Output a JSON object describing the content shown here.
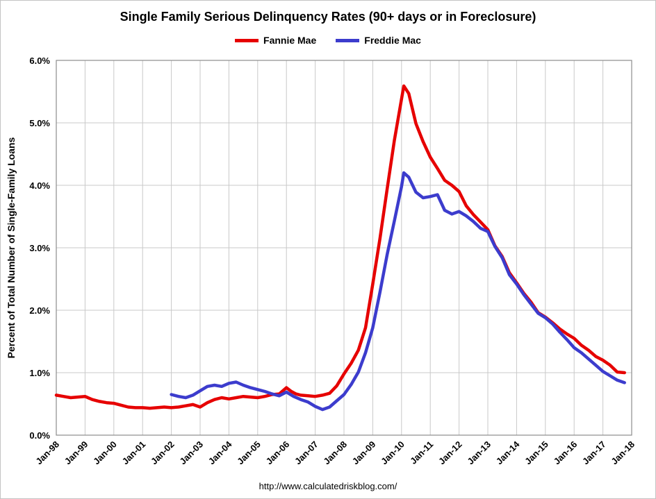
{
  "title": "Single Family Serious Delinquency Rates (90+ days or in Foreclosure)",
  "footer": {
    "text": "http://www.calculatedriskblog.com/"
  },
  "legend": [
    {
      "label": "Fannie Mae",
      "color": "#e60000"
    },
    {
      "label": "Freddie Mac",
      "color": "#3c3ccd"
    }
  ],
  "chart_data": {
    "type": "line",
    "title": "Single Family Serious Delinquency Rates (90+ days or in Foreclosure)",
    "xlabel": "",
    "ylabel": "Percent of Total Number of Single-Family Loans",
    "xlim": [
      1998,
      2018
    ],
    "ylim": [
      0,
      6
    ],
    "grid": true,
    "grid_color": "#c9c9c9",
    "axis_color": "#8c8c8c",
    "legend_position": "top",
    "y_ticks": [
      {
        "v": 0,
        "label": "0.0%"
      },
      {
        "v": 1,
        "label": "1.0%"
      },
      {
        "v": 2,
        "label": "2.0%"
      },
      {
        "v": 3,
        "label": "3.0%"
      },
      {
        "v": 4,
        "label": "4.0%"
      },
      {
        "v": 5,
        "label": "5.0%"
      },
      {
        "v": 6,
        "label": "6.0%"
      }
    ],
    "x_ticks": [
      {
        "x": 1998,
        "label": "Jan-98"
      },
      {
        "x": 1999,
        "label": "Jan-99"
      },
      {
        "x": 2000,
        "label": "Jan-00"
      },
      {
        "x": 2001,
        "label": "Jan-01"
      },
      {
        "x": 2002,
        "label": "Jan-02"
      },
      {
        "x": 2003,
        "label": "Jan-03"
      },
      {
        "x": 2004,
        "label": "Jan-04"
      },
      {
        "x": 2005,
        "label": "Jan-05"
      },
      {
        "x": 2006,
        "label": "Jan-06"
      },
      {
        "x": 2007,
        "label": "Jan-07"
      },
      {
        "x": 2008,
        "label": "Jan-08"
      },
      {
        "x": 2009,
        "label": "Jan-09"
      },
      {
        "x": 2010,
        "label": "Jan-10"
      },
      {
        "x": 2011,
        "label": "Jan-11"
      },
      {
        "x": 2012,
        "label": "Jan-12"
      },
      {
        "x": 2013,
        "label": "Jan-13"
      },
      {
        "x": 2014,
        "label": "Jan-14"
      },
      {
        "x": 2015,
        "label": "Jan-15"
      },
      {
        "x": 2016,
        "label": "Jan-16"
      },
      {
        "x": 2017,
        "label": "Jan-17"
      },
      {
        "x": 2018,
        "label": "Jan-18"
      }
    ],
    "series": [
      {
        "name": "Fannie Mae",
        "color": "#e60000",
        "points": [
          [
            1998.0,
            0.64
          ],
          [
            1998.25,
            0.62
          ],
          [
            1998.5,
            0.6
          ],
          [
            1998.75,
            0.61
          ],
          [
            1999.0,
            0.62
          ],
          [
            1999.25,
            0.57
          ],
          [
            1999.5,
            0.54
          ],
          [
            1999.75,
            0.52
          ],
          [
            2000.0,
            0.51
          ],
          [
            2000.25,
            0.48
          ],
          [
            2000.5,
            0.45
          ],
          [
            2000.75,
            0.44
          ],
          [
            2001.0,
            0.44
          ],
          [
            2001.25,
            0.43
          ],
          [
            2001.5,
            0.44
          ],
          [
            2001.75,
            0.45
          ],
          [
            2002.0,
            0.44
          ],
          [
            2002.25,
            0.45
          ],
          [
            2002.5,
            0.47
          ],
          [
            2002.75,
            0.49
          ],
          [
            2003.0,
            0.45
          ],
          [
            2003.25,
            0.52
          ],
          [
            2003.5,
            0.57
          ],
          [
            2003.75,
            0.6
          ],
          [
            2004.0,
            0.58
          ],
          [
            2004.25,
            0.6
          ],
          [
            2004.5,
            0.62
          ],
          [
            2004.75,
            0.61
          ],
          [
            2005.0,
            0.6
          ],
          [
            2005.25,
            0.62
          ],
          [
            2005.5,
            0.65
          ],
          [
            2005.75,
            0.66
          ],
          [
            2006.0,
            0.76
          ],
          [
            2006.17,
            0.7
          ],
          [
            2006.33,
            0.66
          ],
          [
            2006.5,
            0.64
          ],
          [
            2006.75,
            0.63
          ],
          [
            2007.0,
            0.62
          ],
          [
            2007.25,
            0.64
          ],
          [
            2007.5,
            0.67
          ],
          [
            2007.75,
            0.79
          ],
          [
            2008.0,
            0.98
          ],
          [
            2008.25,
            1.15
          ],
          [
            2008.5,
            1.36
          ],
          [
            2008.75,
            1.72
          ],
          [
            2009.0,
            2.42
          ],
          [
            2009.25,
            3.15
          ],
          [
            2009.5,
            3.94
          ],
          [
            2009.75,
            4.72
          ],
          [
            2010.0,
            5.38
          ],
          [
            2010.08,
            5.59
          ],
          [
            2010.25,
            5.47
          ],
          [
            2010.5,
            4.99
          ],
          [
            2010.75,
            4.7
          ],
          [
            2011.0,
            4.45
          ],
          [
            2011.25,
            4.27
          ],
          [
            2011.5,
            4.08
          ],
          [
            2011.75,
            4.0
          ],
          [
            2012.0,
            3.9
          ],
          [
            2012.25,
            3.67
          ],
          [
            2012.5,
            3.53
          ],
          [
            2012.75,
            3.41
          ],
          [
            2013.0,
            3.29
          ],
          [
            2013.25,
            3.03
          ],
          [
            2013.5,
            2.86
          ],
          [
            2013.75,
            2.6
          ],
          [
            2014.0,
            2.44
          ],
          [
            2014.25,
            2.27
          ],
          [
            2014.5,
            2.13
          ],
          [
            2014.75,
            1.96
          ],
          [
            2015.0,
            1.89
          ],
          [
            2015.25,
            1.8
          ],
          [
            2015.5,
            1.7
          ],
          [
            2015.75,
            1.62
          ],
          [
            2016.0,
            1.55
          ],
          [
            2016.25,
            1.44
          ],
          [
            2016.5,
            1.36
          ],
          [
            2016.75,
            1.26
          ],
          [
            2017.0,
            1.2
          ],
          [
            2017.25,
            1.12
          ],
          [
            2017.5,
            1.01
          ],
          [
            2017.75,
            1.0
          ]
        ]
      },
      {
        "name": "Freddie Mac",
        "color": "#3c3ccd",
        "points": [
          [
            2002.0,
            0.65
          ],
          [
            2002.25,
            0.62
          ],
          [
            2002.5,
            0.6
          ],
          [
            2002.75,
            0.64
          ],
          [
            2003.0,
            0.71
          ],
          [
            2003.25,
            0.78
          ],
          [
            2003.5,
            0.8
          ],
          [
            2003.75,
            0.78
          ],
          [
            2004.0,
            0.83
          ],
          [
            2004.25,
            0.85
          ],
          [
            2004.5,
            0.8
          ],
          [
            2004.75,
            0.76
          ],
          [
            2005.0,
            0.73
          ],
          [
            2005.25,
            0.7
          ],
          [
            2005.5,
            0.66
          ],
          [
            2005.75,
            0.63
          ],
          [
            2006.0,
            0.69
          ],
          [
            2006.25,
            0.62
          ],
          [
            2006.5,
            0.57
          ],
          [
            2006.75,
            0.53
          ],
          [
            2007.0,
            0.46
          ],
          [
            2007.25,
            0.41
          ],
          [
            2007.5,
            0.45
          ],
          [
            2007.75,
            0.55
          ],
          [
            2008.0,
            0.65
          ],
          [
            2008.25,
            0.81
          ],
          [
            2008.5,
            1.01
          ],
          [
            2008.75,
            1.32
          ],
          [
            2009.0,
            1.72
          ],
          [
            2009.25,
            2.29
          ],
          [
            2009.5,
            2.89
          ],
          [
            2009.75,
            3.43
          ],
          [
            2010.0,
            3.98
          ],
          [
            2010.08,
            4.2
          ],
          [
            2010.25,
            4.13
          ],
          [
            2010.5,
            3.89
          ],
          [
            2010.75,
            3.8
          ],
          [
            2011.0,
            3.82
          ],
          [
            2011.25,
            3.85
          ],
          [
            2011.5,
            3.6
          ],
          [
            2011.75,
            3.54
          ],
          [
            2012.0,
            3.58
          ],
          [
            2012.25,
            3.51
          ],
          [
            2012.5,
            3.42
          ],
          [
            2012.75,
            3.31
          ],
          [
            2013.0,
            3.26
          ],
          [
            2013.25,
            3.02
          ],
          [
            2013.5,
            2.84
          ],
          [
            2013.75,
            2.57
          ],
          [
            2014.0,
            2.42
          ],
          [
            2014.25,
            2.25
          ],
          [
            2014.5,
            2.1
          ],
          [
            2014.75,
            1.95
          ],
          [
            2015.0,
            1.88
          ],
          [
            2015.25,
            1.78
          ],
          [
            2015.5,
            1.65
          ],
          [
            2015.75,
            1.53
          ],
          [
            2016.0,
            1.4
          ],
          [
            2016.25,
            1.32
          ],
          [
            2016.5,
            1.22
          ],
          [
            2016.75,
            1.12
          ],
          [
            2017.0,
            1.02
          ],
          [
            2017.25,
            0.95
          ],
          [
            2017.5,
            0.88
          ],
          [
            2017.75,
            0.84
          ]
        ]
      }
    ]
  }
}
